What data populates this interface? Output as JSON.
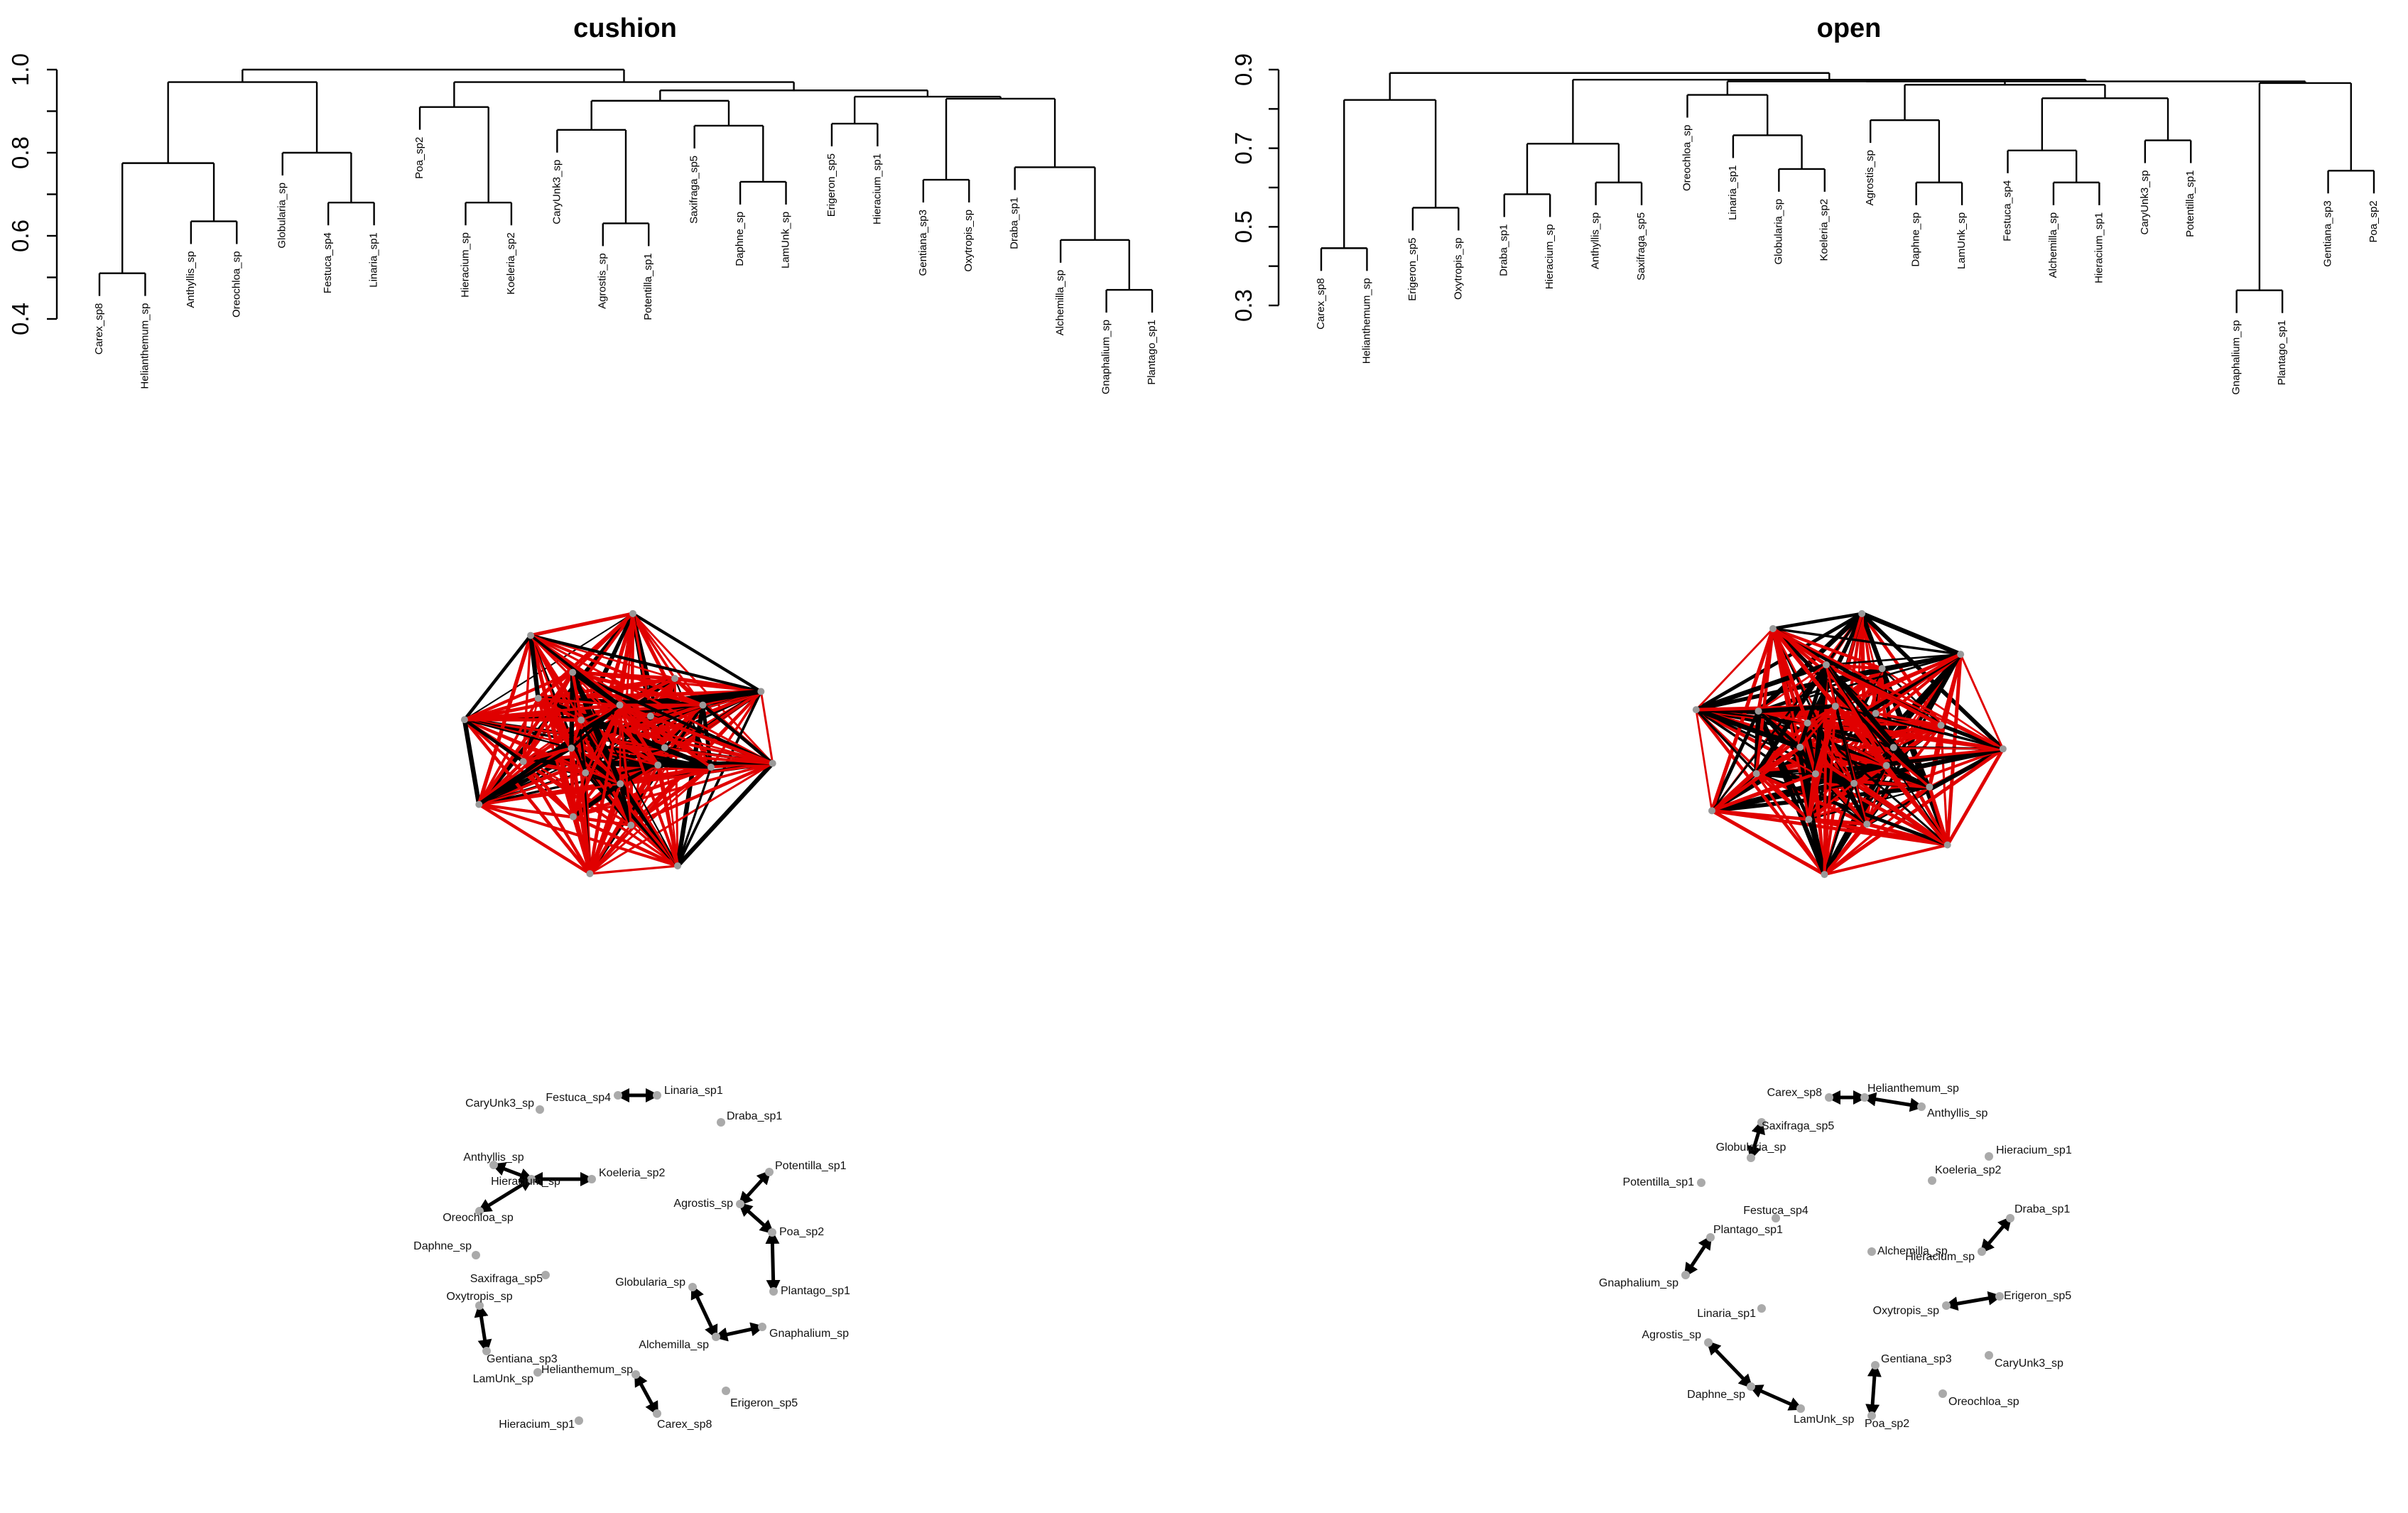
{
  "chart_data": [
    {
      "type": "dendrogram",
      "title": "cushion",
      "ylim": [
        0.4,
        1.0
      ],
      "yticks": [
        "0.4",
        "0.6",
        "0.8",
        "1.0"
      ],
      "leaves": [
        "Carex_sp8",
        "Helianthemum_sp",
        "Anthyllis_sp",
        "Oreochloa_sp",
        "Globularia_sp",
        "Festuca_sp4",
        "Linaria_sp1",
        "Poa_sp2",
        "Hieracium_sp",
        "Koeleria_sp2",
        "CaryUnk3_sp",
        "Agrostis_sp",
        "Potentilla_sp1",
        "Saxifraga_sp5",
        "Daphne_sp",
        "LamUnk_sp",
        "Erigeron_sp5",
        "Hieracium_sp1",
        "Gentiana_sp3",
        "Oxytropis_sp",
        "Draba_sp1",
        "Alchemilla_sp",
        "Gnaphalium_sp",
        "Plantago_sp1"
      ],
      "merges": [
        [
          [
            0,
            1
          ],
          0.51
        ],
        [
          [
            2,
            3
          ],
          0.635
        ],
        [
          [
            24,
            25
          ],
          0.775
        ],
        [
          [
            5,
            6
          ],
          0.68
        ],
        [
          [
            4,
            27
          ],
          0.8
        ],
        [
          [
            26,
            28
          ],
          0.97
        ],
        [
          [
            8,
            9
          ],
          0.68
        ],
        [
          [
            7,
            30
          ],
          0.91
        ],
        [
          [
            11,
            12
          ],
          0.63
        ],
        [
          [
            10,
            32
          ],
          0.855
        ],
        [
          [
            14,
            15
          ],
          0.73
        ],
        [
          [
            13,
            34
          ],
          0.865
        ],
        [
          [
            33,
            35
          ],
          0.925
        ],
        [
          [
            16,
            17
          ],
          0.87
        ],
        [
          [
            18,
            19
          ],
          0.735
        ],
        [
          [
            22,
            23
          ],
          0.47
        ],
        [
          [
            21,
            39
          ],
          0.59
        ],
        [
          [
            20,
            40
          ],
          0.765
        ],
        [
          [
            38,
            41
          ],
          0.93
        ],
        [
          [
            37,
            42
          ],
          0.935
        ],
        [
          [
            36,
            43
          ],
          0.95
        ],
        [
          [
            31,
            44
          ],
          0.97
        ],
        [
          [
            29,
            45
          ],
          1.0
        ]
      ]
    },
    {
      "type": "dendrogram",
      "title": "open",
      "ylim": [
        0.3,
        1.0
      ],
      "yticks": [
        "0.3",
        "0.5",
        "0.7",
        "0.9"
      ],
      "leaves": [
        "Carex_sp8",
        "Helianthemum_sp",
        "Erigeron_sp5",
        "Oxytropis_sp",
        "Draba_sp1",
        "Hieracium_sp",
        "Anthyllis_sp",
        "Saxifraga_sp5",
        "Oreochloa_sp",
        "Linaria_sp1",
        "Globularia_sp",
        "Koeleria_sp2",
        "Agrostis_sp",
        "Daphne_sp",
        "LamUnk_sp",
        "Festuca_sp4",
        "Alchemilla_sp",
        "Hieracium_sp1",
        "CaryUnk3_sp",
        "Potentilla_sp1",
        "Gnaphalium_sp",
        "Plantago_sp1",
        "Gentiana_sp3",
        "Poa_sp2"
      ],
      "merges": [
        [
          [
            0,
            1
          ],
          0.47
        ],
        [
          [
            2,
            3
          ],
          0.59
        ],
        [
          [
            24,
            25
          ],
          0.91
        ],
        [
          [
            4,
            5
          ],
          0.63
        ],
        [
          [
            6,
            7
          ],
          0.665
        ],
        [
          [
            27,
            28
          ],
          0.78
        ],
        [
          [
            10,
            11
          ],
          0.705
        ],
        [
          [
            9,
            30
          ],
          0.805
        ],
        [
          [
            8,
            31
          ],
          0.925
        ],
        [
          [
            13,
            14
          ],
          0.665
        ],
        [
          [
            12,
            33
          ],
          0.85
        ],
        [
          [
            16,
            17
          ],
          0.665
        ],
        [
          [
            15,
            35
          ],
          0.76
        ],
        [
          [
            18,
            19
          ],
          0.79
        ],
        [
          [
            36,
            37
          ],
          0.915
        ],
        [
          [
            34,
            38
          ],
          0.955
        ],
        [
          [
            32,
            39
          ],
          0.965
        ],
        [
          [
            20,
            21
          ],
          0.345
        ],
        [
          [
            22,
            23
          ],
          0.7
        ],
        [
          [
            41,
            42
          ],
          0.96
        ],
        [
          [
            40,
            43
          ],
          0.965
        ],
        [
          [
            29,
            44
          ],
          0.97
        ],
        [
          [
            26,
            45
          ],
          0.99
        ]
      ]
    },
    {
      "type": "network",
      "name": "cushion full network",
      "node_count": 24,
      "edge_colors": {
        "positive": "#e00000",
        "negative": "#000000"
      }
    },
    {
      "type": "network",
      "name": "open full network",
      "node_count": 24,
      "edge_colors": {
        "positive": "#e00000",
        "negative": "#000000"
      }
    },
    {
      "type": "network",
      "name": "cushion reduced network",
      "nodes": [
        {
          "label": "Linaria_sp1"
        },
        {
          "label": "Festuca_sp4"
        },
        {
          "label": "CaryUnk3_sp"
        },
        {
          "label": "Draba_sp1"
        },
        {
          "label": "Anthyllis_sp"
        },
        {
          "label": "Koeleria_sp2"
        },
        {
          "label": "Hieracium_sp"
        },
        {
          "label": "Oreochloa_sp"
        },
        {
          "label": "Daphne_sp"
        },
        {
          "label": "Saxifraga_sp5"
        },
        {
          "label": "Oxytropis_sp"
        },
        {
          "label": "Gentiana_sp3"
        },
        {
          "label": "LamUnk_sp"
        },
        {
          "label": "Helianthemum_sp"
        },
        {
          "label": "Hieracium_sp1"
        },
        {
          "label": "Potentilla_sp1"
        },
        {
          "label": "Agrostis_sp"
        },
        {
          "label": "Poa_sp2"
        },
        {
          "label": "Globularia_sp"
        },
        {
          "label": "Plantago_sp1"
        },
        {
          "label": "Alchemilla_sp"
        },
        {
          "label": "Gnaphalium_sp"
        },
        {
          "label": "Erigeron_sp5"
        },
        {
          "label": "Carex_sp8"
        }
      ],
      "edges": [
        [
          "Festuca_sp4",
          "Linaria_sp1"
        ],
        [
          "Anthyllis_sp",
          "Hieracium_sp"
        ],
        [
          "Hieracium_sp",
          "Koeleria_sp2"
        ],
        [
          "Oreochloa_sp",
          "Hieracium_sp"
        ],
        [
          "Oxytropis_sp",
          "Gentiana_sp3"
        ],
        [
          "Potentilla_sp1",
          "Agrostis_sp"
        ],
        [
          "Agrostis_sp",
          "Poa_sp2"
        ],
        [
          "Poa_sp2",
          "Plantago_sp1"
        ],
        [
          "Globularia_sp",
          "Alchemilla_sp"
        ],
        [
          "Alchemilla_sp",
          "Gnaphalium_sp"
        ],
        [
          "Helianthemum_sp",
          "Carex_sp8"
        ]
      ],
      "edge_color": "#000000",
      "node_color": "#aaaaaa"
    },
    {
      "type": "network",
      "name": "open reduced network",
      "nodes": [
        {
          "label": "Carex_sp8"
        },
        {
          "label": "Helianthemum_sp"
        },
        {
          "label": "Anthyllis_sp"
        },
        {
          "label": "Saxifraga_sp5"
        },
        {
          "label": "Hieracium_sp1"
        },
        {
          "label": "Globularia_sp"
        },
        {
          "label": "Potentilla_sp1"
        },
        {
          "label": "Koeleria_sp2"
        },
        {
          "label": "Festuca_sp4"
        },
        {
          "label": "Draba_sp1"
        },
        {
          "label": "Plantago_sp1"
        },
        {
          "label": "Alchemilla_sp"
        },
        {
          "label": "Hieracium_sp"
        },
        {
          "label": "Gnaphalium_sp"
        },
        {
          "label": "Erigeron_sp5"
        },
        {
          "label": "Oxytropis_sp"
        },
        {
          "label": "Linaria_sp1"
        },
        {
          "label": "Agrostis_sp"
        },
        {
          "label": "Gentiana_sp3"
        },
        {
          "label": "CaryUnk3_sp"
        },
        {
          "label": "Daphne_sp"
        },
        {
          "label": "Oreochloa_sp"
        },
        {
          "label": "LamUnk_sp"
        },
        {
          "label": "Poa_sp2"
        }
      ],
      "edges": [
        [
          "Carex_sp8",
          "Helianthemum_sp"
        ],
        [
          "Helianthemum_sp",
          "Anthyllis_sp"
        ],
        [
          "Saxifraga_sp5",
          "Globularia_sp"
        ],
        [
          "Draba_sp1",
          "Hieracium_sp"
        ],
        [
          "Plantago_sp1",
          "Gnaphalium_sp"
        ],
        [
          "Oxytropis_sp",
          "Erigeron_sp5"
        ],
        [
          "Agrostis_sp",
          "Daphne_sp"
        ],
        [
          "Daphne_sp",
          "LamUnk_sp"
        ],
        [
          "Gentiana_sp3",
          "Poa_sp2"
        ]
      ],
      "edge_color": "#000000",
      "node_color": "#aaaaaa"
    }
  ]
}
